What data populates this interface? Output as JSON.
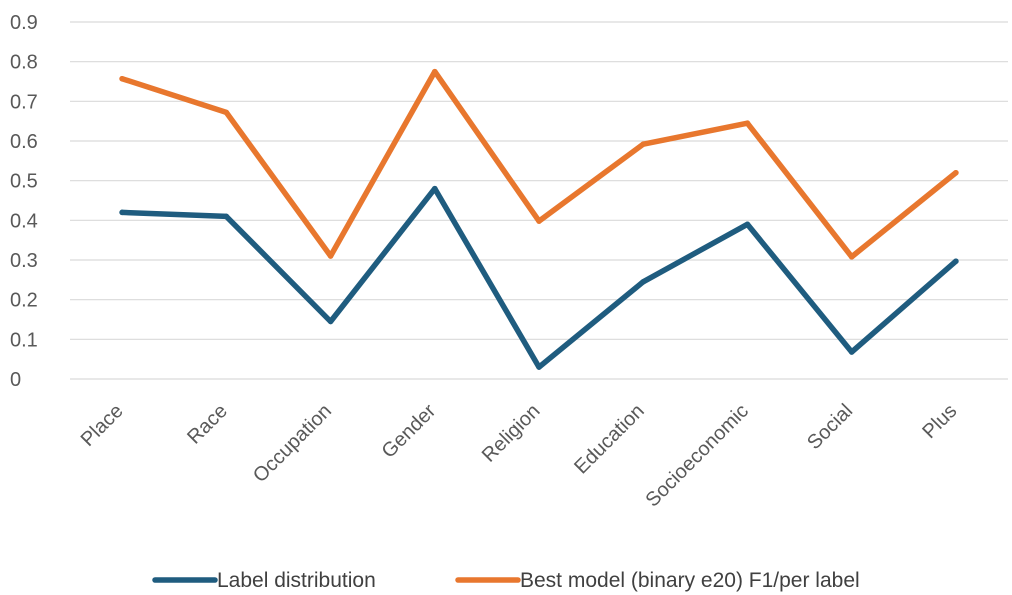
{
  "chart_data": {
    "type": "line",
    "title": "",
    "xlabel": "",
    "ylabel": "",
    "categories": [
      "Place",
      "Race",
      "Occupation",
      "Gender",
      "Religion",
      "Education",
      "Socioeconomic",
      "Social",
      "Plus"
    ],
    "ylim": [
      0,
      0.9
    ],
    "yticks": [
      "0",
      "0.1",
      "0.2",
      "0.3",
      "0.4",
      "0.5",
      "0.6",
      "0.7",
      "0.8",
      "0.9"
    ],
    "grid": true,
    "legend_position": "bottom",
    "series": [
      {
        "name": "Label distribution",
        "color": "#1f5c7f",
        "values": [
          0.42,
          0.41,
          0.145,
          0.48,
          0.03,
          0.245,
          0.39,
          0.068,
          0.297
        ]
      },
      {
        "name": "Best model (binary e20) F1/per label",
        "color": "#e8772e",
        "values": [
          0.757,
          0.672,
          0.31,
          0.775,
          0.398,
          0.592,
          0.645,
          0.308,
          0.52
        ]
      }
    ]
  }
}
